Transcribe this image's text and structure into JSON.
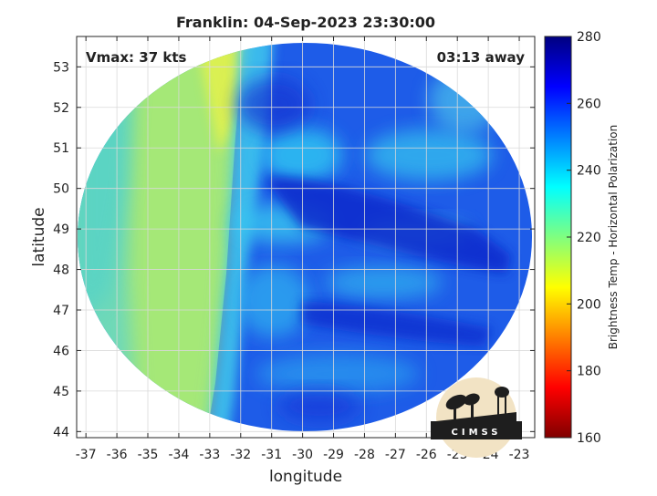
{
  "chart_data": {
    "type": "heatmap",
    "title": "Franklin: 04-Sep-2023 23:30:00",
    "xlabel": "longitude",
    "ylabel": "latitude",
    "xlim": [
      -37.3,
      -22.5
    ],
    "ylim": [
      43.85,
      53.75
    ],
    "x_ticks": [
      -37,
      -36,
      -35,
      -34,
      -33,
      -32,
      -31,
      -30,
      -29,
      -28,
      -27,
      -26,
      -25,
      -24,
      -23
    ],
    "y_ticks": [
      44,
      45,
      46,
      47,
      48,
      49,
      50,
      51,
      52,
      53
    ],
    "grid": true,
    "annotations": {
      "vmax": "Vmax: 37 kts",
      "time_away": "03:13 away"
    },
    "colorbar": {
      "label": "Brightness Temp - Horizontal Polarization",
      "range": [
        160,
        280
      ],
      "ticks": [
        160,
        180,
        200,
        220,
        240,
        260,
        280
      ],
      "colormap": "jet"
    },
    "swath_center": [
      -30.0,
      48.3
    ],
    "dominant_values": {
      "west_region": 228,
      "yellow_band": 212,
      "east_region": 255,
      "cold_cloud_band": 268
    }
  },
  "logo": {
    "text": "CIMSS"
  },
  "colors": {
    "background": "#ffffff",
    "grid": "#d9d9d9",
    "axis": "#262626"
  }
}
